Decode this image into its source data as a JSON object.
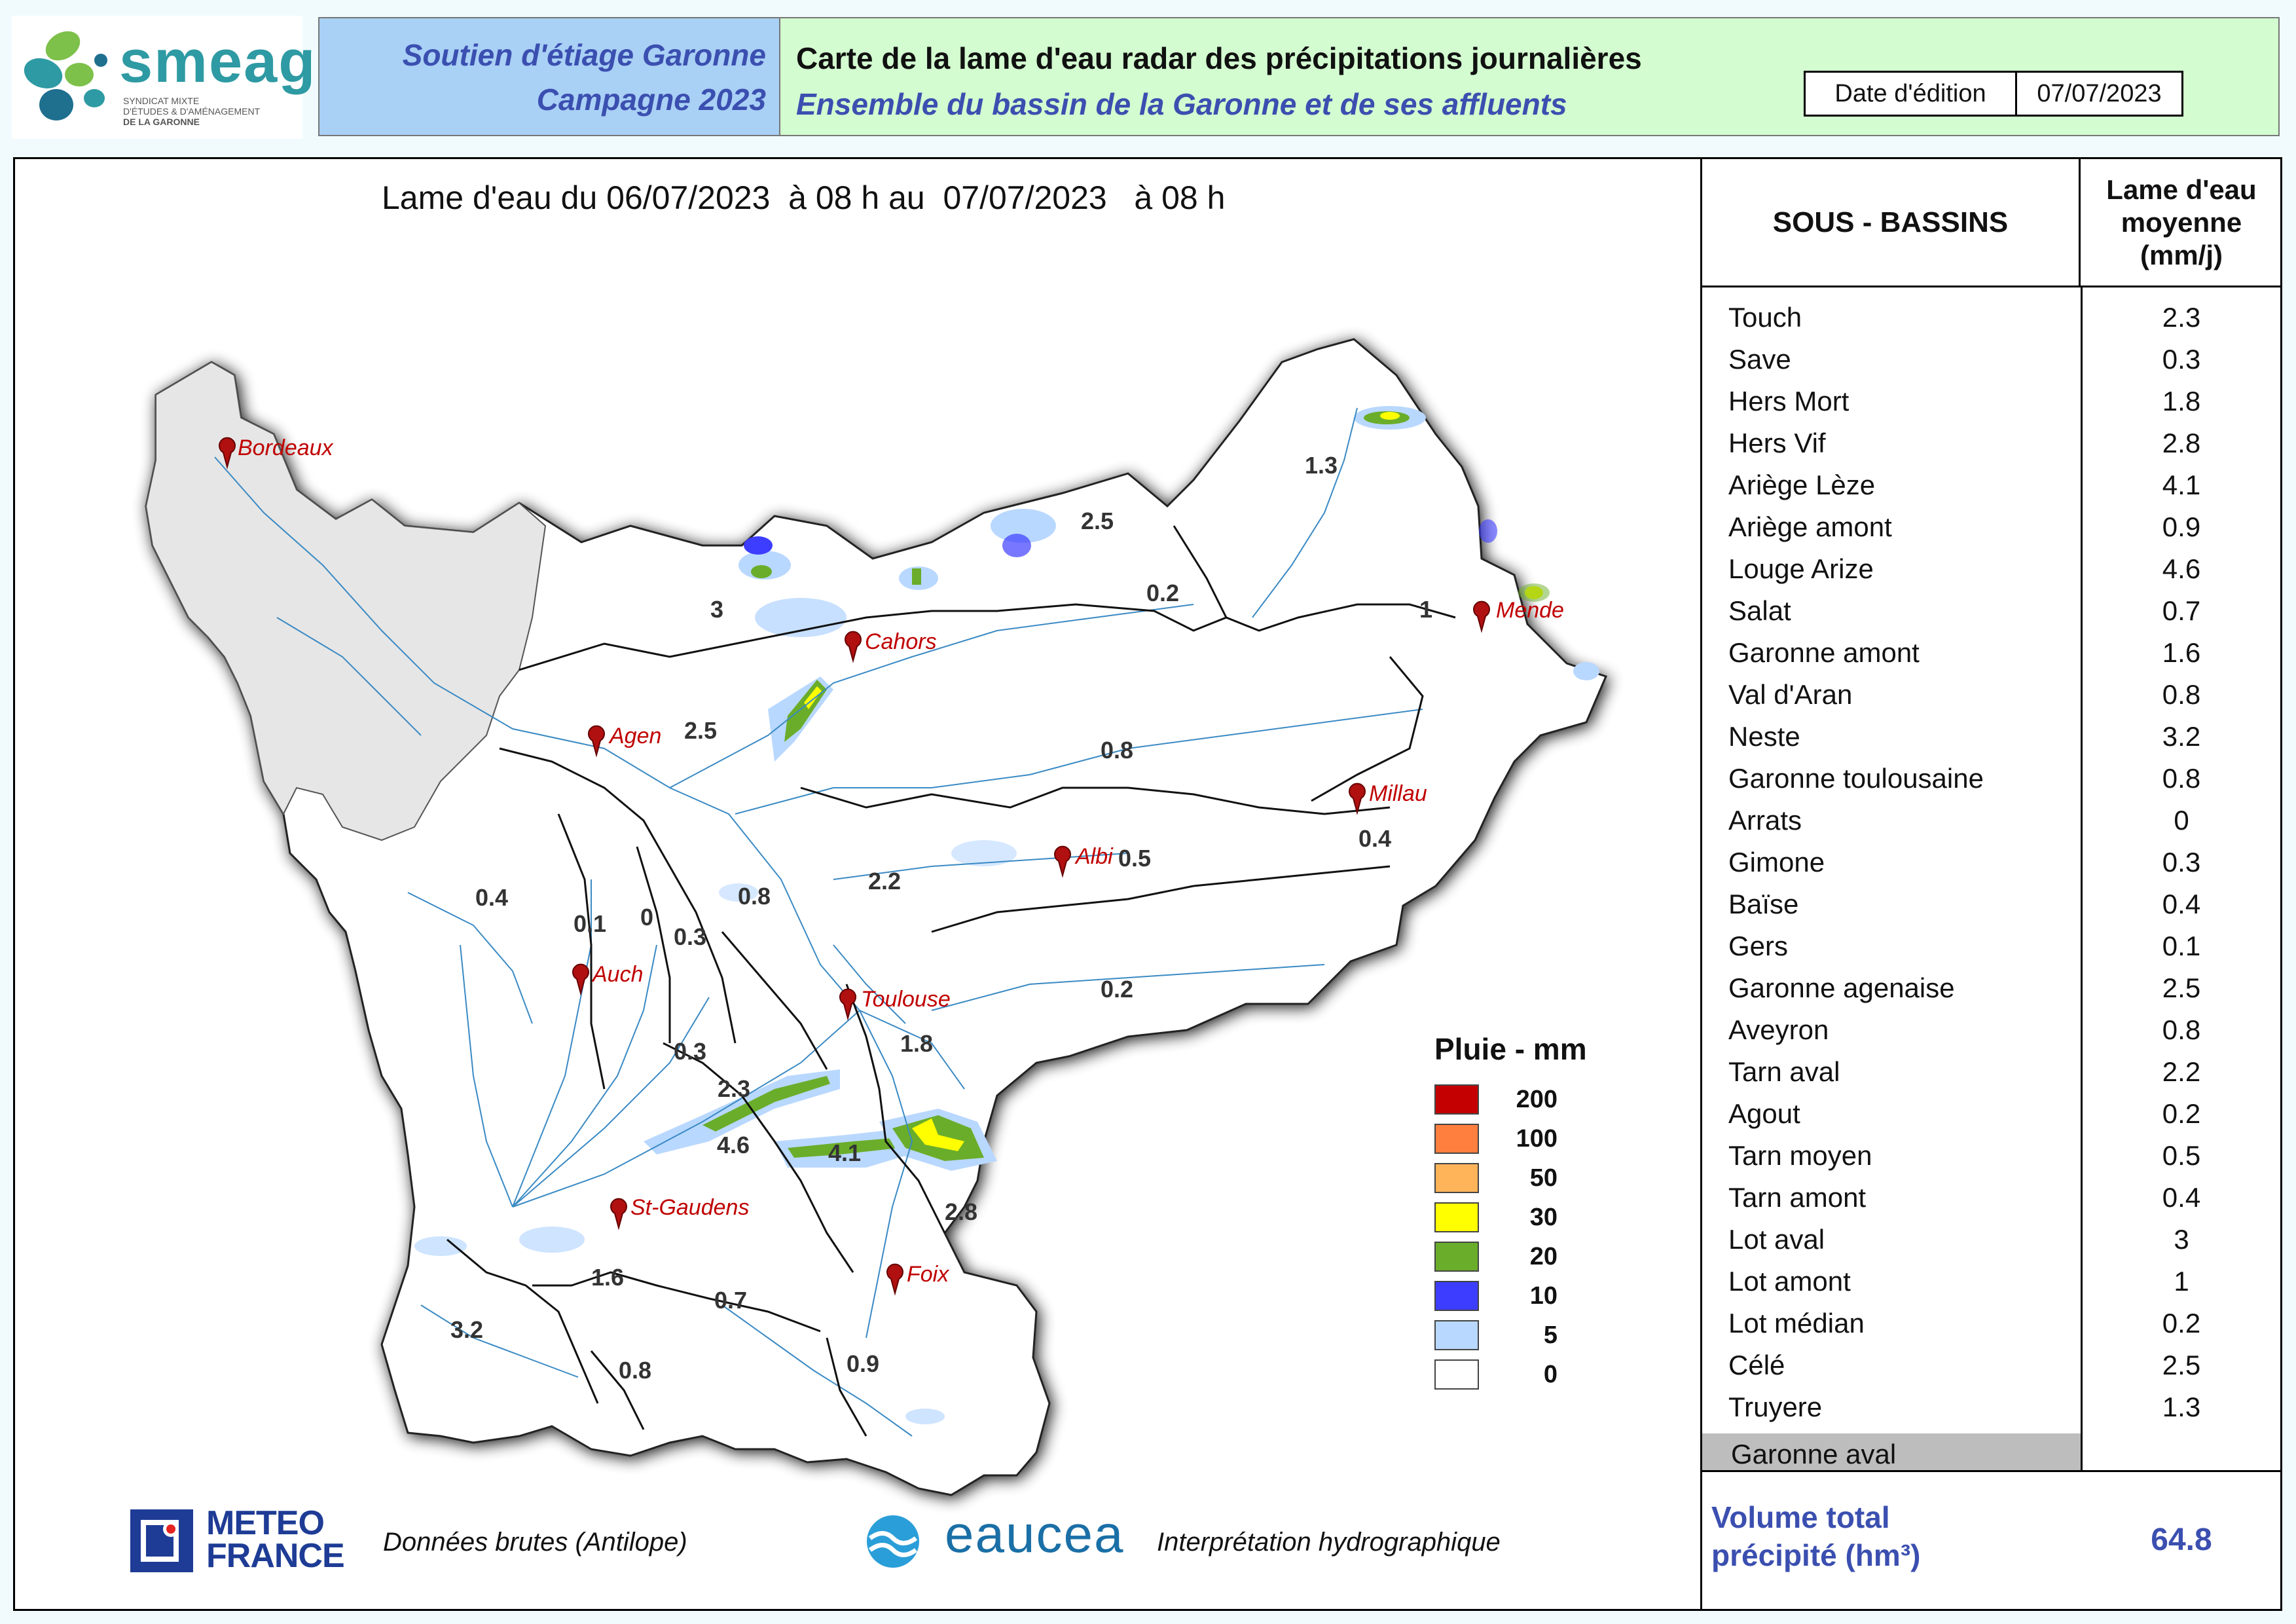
{
  "header": {
    "logo_word": "smeag",
    "logo_sub": [
      "SYNDICAT MIXTE",
      "D'ÉTUDES & D'AMÉNAGEMENT",
      "DE LA GARONNE"
    ],
    "program_line1": "Soutien d'étiage Garonne",
    "program_line2": "Campagne 2023",
    "title": "Carte de la lame d'eau radar des précipitations journalières",
    "subtitle": "Ensemble du bassin de la Garonne et de ses affluents",
    "date_label": "Date d'édition",
    "date_value": "07/07/2023"
  },
  "map": {
    "caption": "Lame d'eau du 06/07/2023  à 08 h au  07/07/2023   à 08 h",
    "cities": [
      "Bordeaux",
      "Cahors",
      "Agen",
      "Mende",
      "Millau",
      "Albi",
      "Auch",
      "Toulouse",
      "St-Gaudens",
      "Foix"
    ],
    "basin_values": [
      "2.5",
      "0.2",
      "1.3",
      "3",
      "1",
      "2.5",
      "0.8",
      "0.4",
      "0.5",
      "2.2",
      "0.4",
      "0.1",
      "0",
      "0.8",
      "0.3",
      "0.2",
      "1.8",
      "0.3",
      "2.3",
      "4.6",
      "4.1",
      "2.8",
      "1.6",
      "0.7",
      "3.2",
      "0.8",
      "0.9"
    ]
  },
  "legend": {
    "title": "Pluie - mm",
    "items": [
      {
        "label": "200",
        "color": "#c40000"
      },
      {
        "label": "100",
        "color": "#ff7f3f"
      },
      {
        "label": "50",
        "color": "#ffb45a"
      },
      {
        "label": "30",
        "color": "#ffff00"
      },
      {
        "label": "20",
        "color": "#6aad2a"
      },
      {
        "label": "10",
        "color": "#3d3dff"
      },
      {
        "label": "5",
        "color": "#b9d8ff"
      },
      {
        "label": "0",
        "color": "#ffffff"
      }
    ]
  },
  "footer": {
    "meteo_line1": "METEO",
    "meteo_line2": "FRANCE",
    "meteo_desc": "Données brutes (Antilope)",
    "eaucea_name": "eaucea",
    "eaucea_desc": "Interprétation hydrographique"
  },
  "table": {
    "header_name": "SOUS - BASSINS",
    "header_value_lines": [
      "Lame d'eau",
      "moyenne",
      "(mm/j)"
    ],
    "rows": [
      {
        "name": "Touch",
        "value": "2.3"
      },
      {
        "name": "Save",
        "value": "0.3"
      },
      {
        "name": "Hers Mort",
        "value": "1.8"
      },
      {
        "name": "Hers Vif",
        "value": "2.8"
      },
      {
        "name": "Ariège Lèze",
        "value": "4.1"
      },
      {
        "name": "Ariège amont",
        "value": "0.9"
      },
      {
        "name": "Louge Arize",
        "value": "4.6"
      },
      {
        "name": "Salat",
        "value": "0.7"
      },
      {
        "name": "Garonne amont",
        "value": "1.6"
      },
      {
        "name": "Val d'Aran",
        "value": "0.8"
      },
      {
        "name": "Neste",
        "value": "3.2"
      },
      {
        "name": "Garonne toulousaine",
        "value": "0.8"
      },
      {
        "name": "Arrats",
        "value": "0"
      },
      {
        "name": "Gimone",
        "value": "0.3"
      },
      {
        "name": "Baïse",
        "value": "0.4"
      },
      {
        "name": "Gers",
        "value": "0.1"
      },
      {
        "name": "Garonne agenaise",
        "value": "2.5"
      },
      {
        "name": "Aveyron",
        "value": "0.8"
      },
      {
        "name": "Tarn aval",
        "value": "2.2"
      },
      {
        "name": "Agout",
        "value": "0.2"
      },
      {
        "name": "Tarn moyen",
        "value": "0.5"
      },
      {
        "name": "Tarn amont",
        "value": "0.4"
      },
      {
        "name": "Lot aval",
        "value": "3"
      },
      {
        "name": "Lot amont",
        "value": "1"
      },
      {
        "name": "Lot médian",
        "value": "0.2"
      },
      {
        "name": "Célé",
        "value": "2.5"
      },
      {
        "name": "Truyere",
        "value": "1.3"
      }
    ],
    "aval_name": "Garonne aval",
    "total_label_line1": "Volume total",
    "total_label_line2": "précipité (hm³)",
    "total_value": "64.8"
  }
}
